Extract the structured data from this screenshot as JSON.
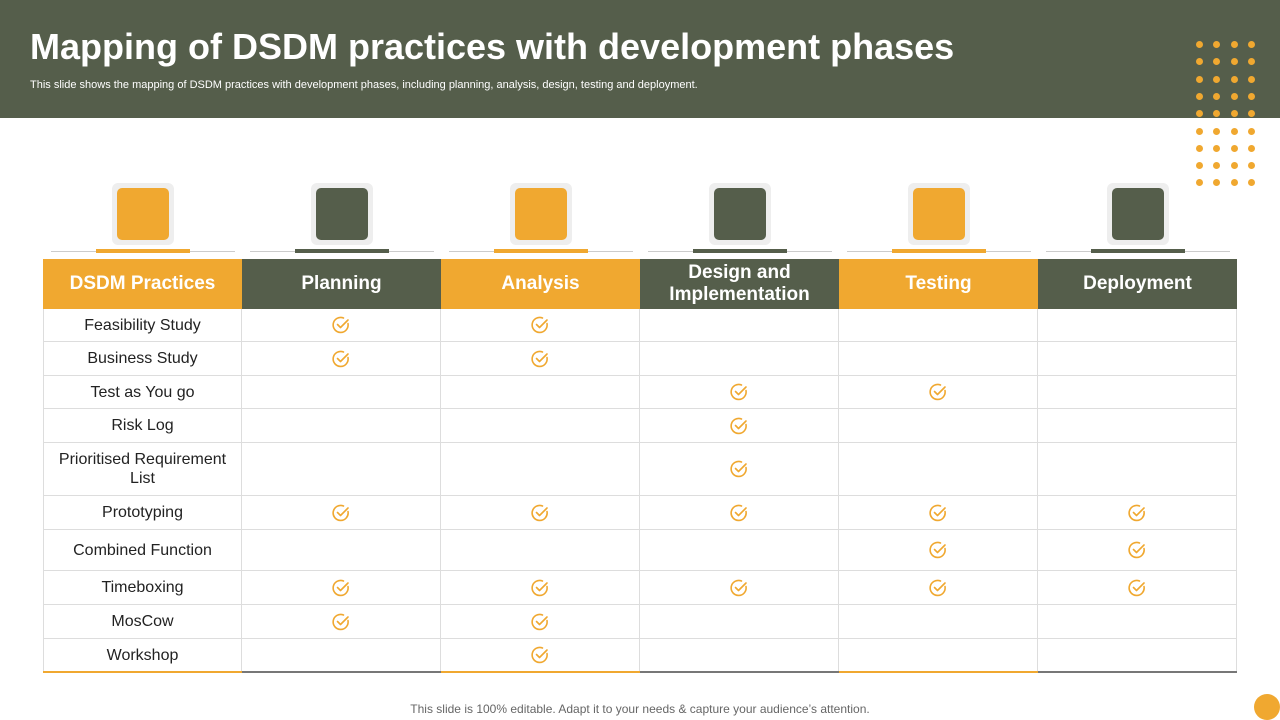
{
  "header": {
    "title": "Mapping of DSDM practices with development phases",
    "subtitle": "This slide shows the mapping of DSDM practices with development phases, including planning, analysis, design, testing and deployment."
  },
  "table": {
    "columns": [
      "DSDM Practices",
      "Planning",
      "Analysis",
      "Design and Implementation",
      "Testing",
      "Deployment"
    ],
    "rows": [
      {
        "label": "Feasibility Study",
        "checks": [
          true,
          true,
          false,
          false,
          false
        ]
      },
      {
        "label": "Business Study",
        "checks": [
          true,
          true,
          false,
          false,
          false
        ]
      },
      {
        "label": "Test as You go",
        "checks": [
          false,
          false,
          true,
          true,
          false
        ]
      },
      {
        "label": "Risk Log",
        "checks": [
          false,
          false,
          true,
          false,
          false
        ]
      },
      {
        "label": "Prioritised Requirement List",
        "checks": [
          false,
          false,
          true,
          false,
          false
        ]
      },
      {
        "label": "Prototyping",
        "checks": [
          true,
          true,
          true,
          true,
          true
        ]
      },
      {
        "label": "Combined Function",
        "checks": [
          false,
          false,
          false,
          true,
          true
        ]
      },
      {
        "label": "Timeboxing",
        "checks": [
          true,
          true,
          true,
          true,
          true
        ]
      },
      {
        "label": "MosCow",
        "checks": [
          true,
          true,
          false,
          false,
          false
        ]
      },
      {
        "label": "Workshop",
        "checks": [
          false,
          true,
          false,
          false,
          false
        ]
      }
    ]
  },
  "footer": {
    "text": "This slide is 100% editable. Adapt it to your needs & capture your audience’s attention."
  }
}
